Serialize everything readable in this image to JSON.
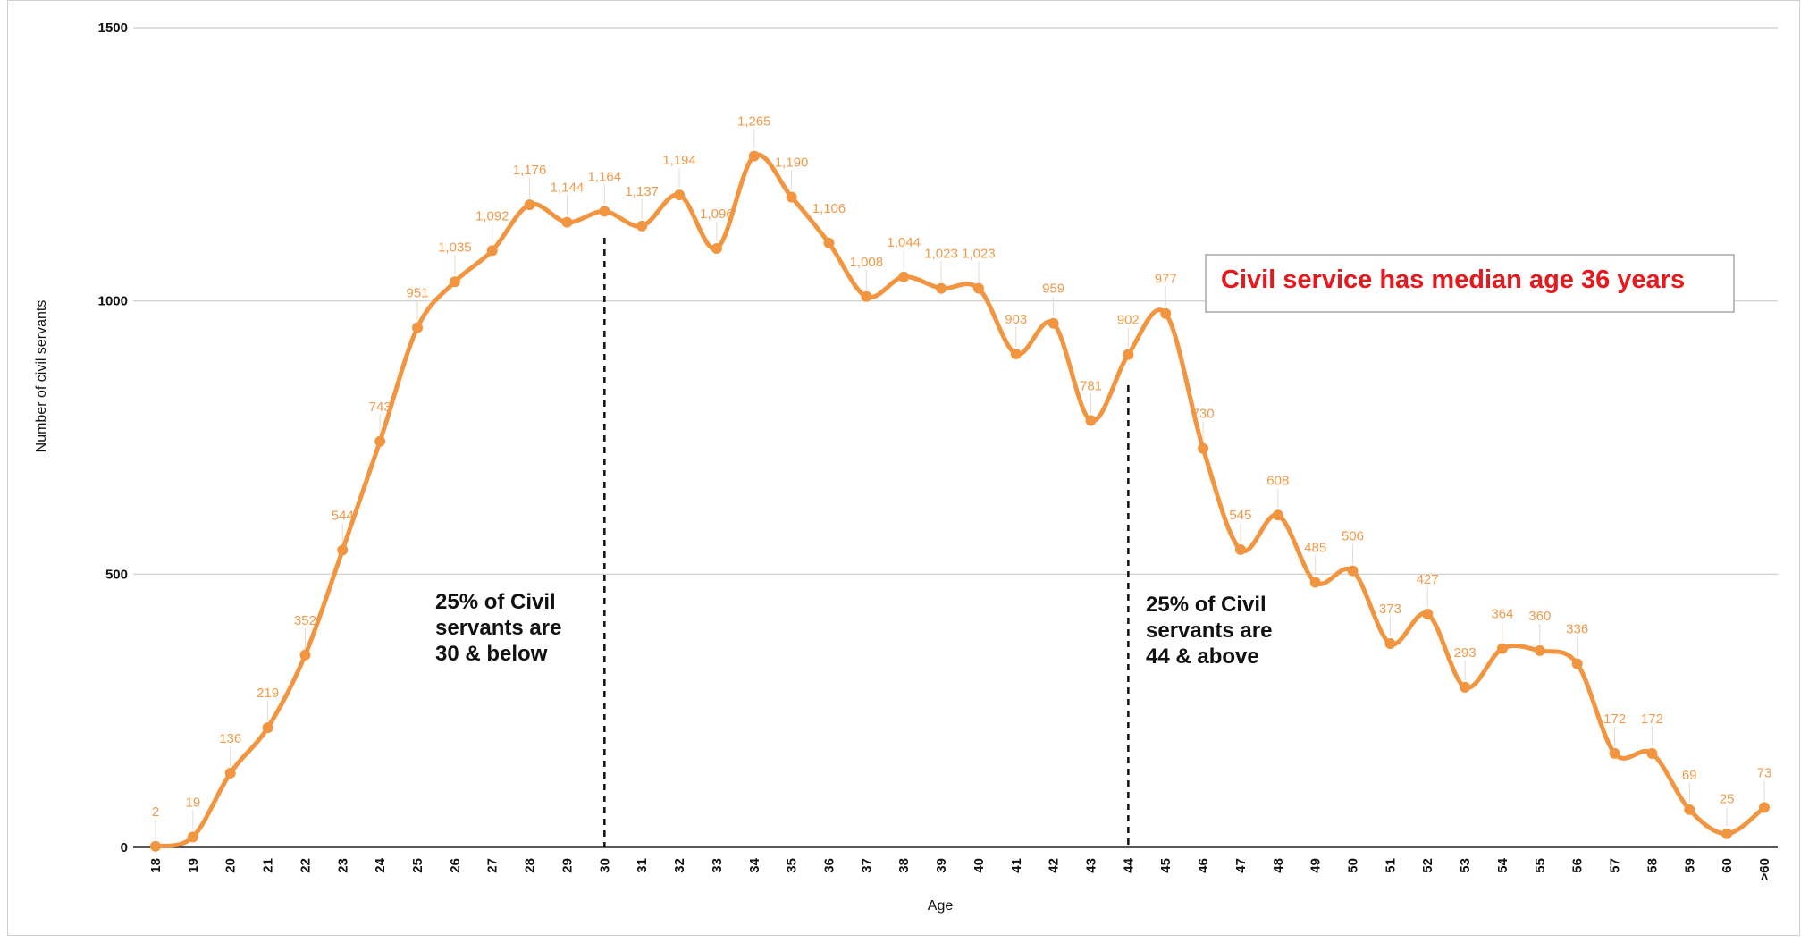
{
  "chart_data": {
    "type": "line",
    "xlabel": "Age",
    "ylabel": "Number of civil servants",
    "ylim": [
      0,
      1500
    ],
    "yticks": [
      "0",
      "500",
      "1000",
      "1500"
    ],
    "grid": true,
    "smooth": true,
    "line_color": "#f29540",
    "label_color": "#f09a4a",
    "categories": [
      "18",
      "19",
      "20",
      "21",
      "22",
      "23",
      "24",
      "25",
      "26",
      "27",
      "28",
      "29",
      "30",
      "31",
      "32",
      "33",
      "34",
      "35",
      "36",
      "37",
      "38",
      "39",
      "40",
      "41",
      "42",
      "43",
      "44",
      "45",
      "46",
      "47",
      "48",
      "49",
      "50",
      "51",
      "52",
      "53",
      "54",
      "55",
      "56",
      "57",
      "58",
      "59",
      "60",
      ">60"
    ],
    "values": [
      2,
      19,
      136,
      219,
      352,
      544,
      743,
      951,
      1035,
      1092,
      1176,
      1144,
      1164,
      1137,
      1194,
      1096,
      1265,
      1190,
      1106,
      1008,
      1044,
      1023,
      1023,
      903,
      959,
      781,
      902,
      977,
      730,
      545,
      608,
      485,
      506,
      373,
      427,
      293,
      364,
      360,
      336,
      172,
      172,
      69,
      25,
      73
    ],
    "labels": [
      "2",
      "19",
      "136",
      "219",
      "352",
      "544",
      "743",
      "951",
      "1,035",
      "1,092",
      "1,176",
      "1,144",
      "1,164",
      "1,137",
      "1,194",
      "1,096",
      "1,265",
      "1,190",
      "1,106",
      "1,008",
      "1,044",
      "1,023",
      "1,023",
      "903",
      "959",
      "781",
      "902",
      "977",
      "730",
      "545",
      "608",
      "485",
      "506",
      "373",
      "427",
      "293",
      "364",
      "360",
      "336",
      "172",
      "172",
      "69",
      "25",
      "73"
    ],
    "markers": [
      {
        "at": "30",
        "text": [
          "25% of Civil",
          "servants are",
          "30 & below"
        ]
      },
      {
        "at": "44",
        "text": [
          "25% of Civil",
          "servants are",
          "44 & above"
        ]
      }
    ],
    "callout": {
      "text": "Civil service has median age 36 years",
      "color": "#e8191c"
    }
  }
}
